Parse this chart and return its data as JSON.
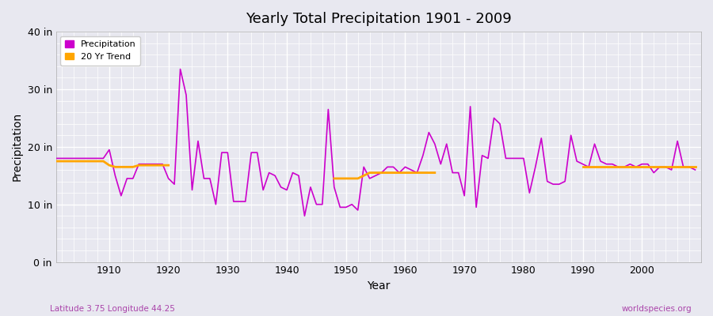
{
  "title": "Yearly Total Precipitation 1901 - 2009",
  "xlabel": "Year",
  "ylabel": "Precipitation",
  "bg_color": "#e8e8f0",
  "precip_color": "#cc00cc",
  "trend_color": "#ffa500",
  "grid_color": "#ffffff",
  "ylim": [
    0,
    40
  ],
  "yticks": [
    0,
    10,
    20,
    30,
    40
  ],
  "ytick_labels": [
    "0 in",
    "10 in",
    "20 in",
    "30 in",
    "40 in"
  ],
  "xlim": [
    1901,
    2010
  ],
  "xticks": [
    1910,
    1920,
    1930,
    1940,
    1950,
    1960,
    1970,
    1980,
    1990,
    2000
  ],
  "footer_left": "Latitude 3.75 Longitude 44.25",
  "footer_right": "worldspecies.org",
  "years": [
    1901,
    1902,
    1903,
    1904,
    1905,
    1906,
    1907,
    1908,
    1909,
    1910,
    1911,
    1912,
    1913,
    1914,
    1915,
    1916,
    1917,
    1918,
    1919,
    1920,
    1921,
    1922,
    1923,
    1924,
    1925,
    1926,
    1927,
    1928,
    1929,
    1930,
    1931,
    1932,
    1933,
    1934,
    1935,
    1936,
    1937,
    1938,
    1939,
    1940,
    1941,
    1942,
    1943,
    1944,
    1945,
    1946,
    1947,
    1948,
    1949,
    1950,
    1951,
    1952,
    1953,
    1954,
    1955,
    1956,
    1957,
    1958,
    1959,
    1960,
    1961,
    1962,
    1963,
    1964,
    1965,
    1966,
    1967,
    1968,
    1969,
    1970,
    1971,
    1972,
    1973,
    1974,
    1975,
    1976,
    1977,
    1978,
    1979,
    1980,
    1981,
    1982,
    1983,
    1984,
    1985,
    1986,
    1987,
    1988,
    1989,
    1990,
    1991,
    1992,
    1993,
    1994,
    1995,
    1996,
    1997,
    1998,
    1999,
    2000,
    2001,
    2002,
    2003,
    2004,
    2005,
    2006,
    2007,
    2008,
    2009
  ],
  "precip": [
    18.0,
    18.0,
    18.0,
    18.0,
    18.0,
    18.0,
    18.0,
    18.0,
    18.0,
    19.5,
    15.0,
    11.5,
    14.5,
    14.5,
    17.0,
    17.0,
    17.0,
    17.0,
    17.0,
    14.5,
    13.5,
    33.5,
    29.0,
    12.5,
    21.0,
    14.5,
    14.5,
    10.0,
    19.0,
    19.0,
    10.5,
    10.5,
    10.5,
    19.0,
    19.0,
    12.5,
    15.5,
    15.0,
    13.0,
    12.5,
    15.5,
    15.0,
    8.0,
    13.0,
    10.0,
    10.0,
    26.5,
    13.0,
    9.5,
    9.5,
    10.0,
    9.0,
    16.5,
    14.5,
    15.0,
    15.5,
    16.5,
    16.5,
    15.5,
    16.5,
    16.0,
    15.5,
    18.5,
    22.5,
    20.5,
    17.0,
    20.5,
    15.5,
    15.5,
    11.5,
    27.0,
    9.5,
    18.5,
    18.0,
    25.0,
    24.0,
    18.0,
    18.0,
    18.0,
    18.0,
    12.0,
    16.5,
    21.5,
    14.0,
    13.5,
    13.5,
    14.0,
    22.0,
    17.5,
    17.0,
    16.5,
    20.5,
    17.5,
    17.0,
    17.0,
    16.5,
    16.5,
    17.0,
    16.5,
    17.0,
    17.0,
    15.5,
    16.5,
    16.5,
    16.0,
    21.0,
    16.5,
    16.5,
    16.0
  ],
  "trend_segments": [
    {
      "years": [
        1901,
        1902,
        1903,
        1904,
        1905,
        1906,
        1907,
        1908,
        1909,
        1910,
        1911,
        1912,
        1913,
        1914,
        1915,
        1916,
        1917,
        1918,
        1919,
        1920
      ],
      "vals": [
        17.5,
        17.5,
        17.5,
        17.5,
        17.5,
        17.5,
        17.5,
        17.5,
        17.5,
        16.8,
        16.5,
        16.5,
        16.5,
        16.5,
        16.8,
        16.8,
        16.8,
        16.8,
        16.8,
        16.8
      ]
    },
    {
      "years": [
        1948,
        1949,
        1950,
        1951,
        1952,
        1953,
        1954,
        1955,
        1956,
        1957,
        1958,
        1959,
        1960,
        1961,
        1962,
        1963,
        1964,
        1965
      ],
      "vals": [
        14.5,
        14.5,
        14.5,
        14.5,
        14.5,
        15.0,
        15.5,
        15.5,
        15.5,
        15.5,
        15.5,
        15.5,
        15.5,
        15.5,
        15.5,
        15.5,
        15.5,
        15.5
      ]
    },
    {
      "years": [
        1990,
        1991,
        1992,
        1993,
        1994,
        1995,
        1996,
        1997,
        1998,
        1999,
        2000,
        2001,
        2002,
        2003,
        2004,
        2005,
        2006,
        2007,
        2008,
        2009
      ],
      "vals": [
        16.5,
        16.5,
        16.5,
        16.5,
        16.5,
        16.5,
        16.5,
        16.5,
        16.5,
        16.5,
        16.5,
        16.5,
        16.5,
        16.5,
        16.5,
        16.5,
        16.5,
        16.5,
        16.5,
        16.5
      ]
    }
  ]
}
